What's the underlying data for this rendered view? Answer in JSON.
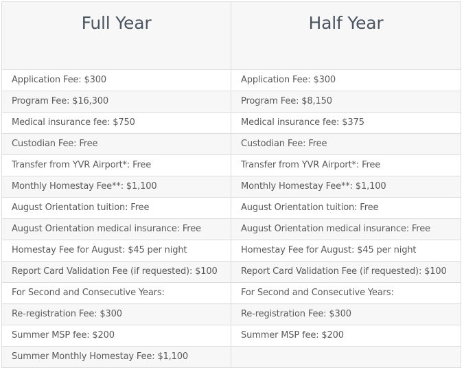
{
  "headers": {
    "full_year": "Full Year",
    "half_year": "Half Year"
  },
  "rows": [
    {
      "full": "Application Fee: $300",
      "half": "Application Fee: $300"
    },
    {
      "full": "Program Fee: $16,300",
      "half": "Program Fee: $8,150"
    },
    {
      "full": "Medical insurance fee: $750",
      "half": "Medical insurance fee: $375"
    },
    {
      "full": "Custodian Fee: Free",
      "half": "Custodian Fee: Free"
    },
    {
      "full": "Transfer from YVR Airport*: Free",
      "half": "Transfer from YVR Airport*: Free"
    },
    {
      "full": "Monthly Homestay Fee**: $1,100",
      "half": "Monthly Homestay Fee**: $1,100"
    },
    {
      "full": "August Orientation tuition: Free",
      "half": "August Orientation tuition: Free"
    },
    {
      "full": "August Orientation medical insurance: Free",
      "half": "August Orientation medical insurance: Free"
    },
    {
      "full": "Homestay Fee for August: $45 per night",
      "half": "Homestay Fee for August: $45 per night"
    },
    {
      "full": "Report Card Validation Fee (if requested): $100",
      "half": "Report Card Validation Fee (if requested): $100"
    },
    {
      "full": "For Second and Consecutive Years:",
      "half": "For Second and Consecutive Years:"
    },
    {
      "full": "Re-registration Fee: $300",
      "half": "Re-registration Fee: $300"
    },
    {
      "full": "Summer MSP fee: $200",
      "half": "Summer MSP fee: $200"
    },
    {
      "full": "Summer Monthly Homestay Fee: $1,100",
      "half": ""
    }
  ]
}
